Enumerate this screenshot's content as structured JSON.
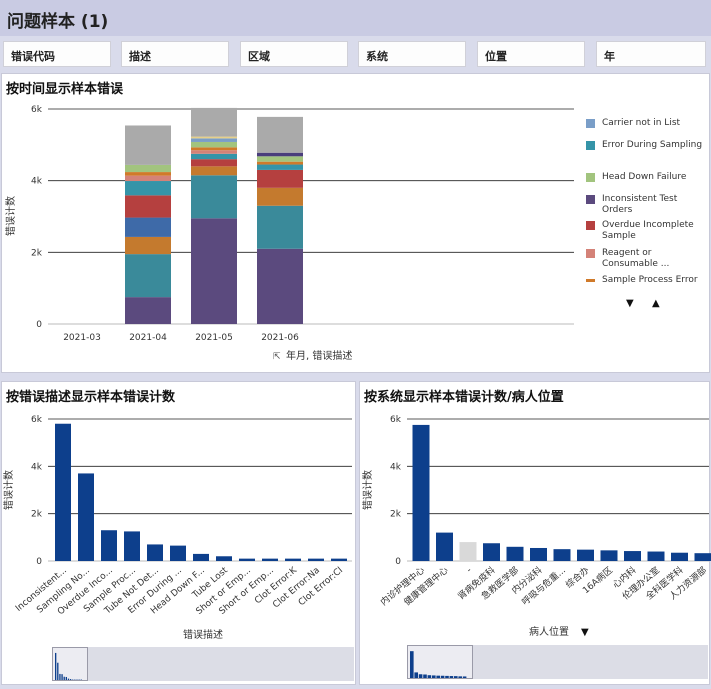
{
  "header": {
    "title": "问题样本 (1)"
  },
  "filters": [
    {
      "label": "错误代码"
    },
    {
      "label": "描述"
    },
    {
      "label": "区域"
    },
    {
      "label": "系统"
    },
    {
      "label": "位置"
    },
    {
      "label": "年"
    }
  ],
  "colors": {
    "accent": "#0d3f8c",
    "hover_bar": "#d9d9d9"
  },
  "chart_data": [
    {
      "type": "bar",
      "stacked": true,
      "title": "按时间显示样本错误",
      "xlabel": "年月, 错误描述",
      "ylabel": "错误计数",
      "ylim": [
        0,
        6000
      ],
      "yticks": [
        "0",
        "2k",
        "4k",
        "6k"
      ],
      "grid": true,
      "legend_position": "right",
      "categories": [
        "2021-03",
        "2021-04",
        "2021-05",
        "2021-06"
      ],
      "series": [
        {
          "name": "Inconsistent Test Orders",
          "color": "#5b4a7e",
          "values": [
            0,
            750,
            2950,
            2100
          ]
        },
        {
          "name": "",
          "color": "#3a8a9a",
          "values": [
            0,
            1200,
            1200,
            1200
          ]
        },
        {
          "name": "",
          "color": "#c47a2e",
          "values": [
            0,
            480,
            250,
            500
          ]
        },
        {
          "name": "",
          "color": "#3e6aa8",
          "values": [
            0,
            540,
            0,
            0
          ]
        },
        {
          "name": "Overdue Incomplete Sample",
          "color": "#b5403f",
          "values": [
            0,
            620,
            200,
            500
          ]
        },
        {
          "name": "Error During Sampling",
          "color": "#3594a8",
          "values": [
            0,
            400,
            150,
            150
          ]
        },
        {
          "name": "Reagent or Consumable ...",
          "color": "#d48278",
          "values": [
            0,
            150,
            100,
            0
          ]
        },
        {
          "name": "Sample Process Error",
          "color": "#d07a2a",
          "values": [
            0,
            100,
            80,
            80
          ]
        },
        {
          "name": "Head Down Failure",
          "color": "#a2c47e",
          "values": [
            0,
            200,
            150,
            150
          ]
        },
        {
          "name": "",
          "color": "#4a3e7c",
          "values": [
            0,
            0,
            0,
            100
          ]
        },
        {
          "name": "Carrier not in List",
          "color": "#7a9ec8",
          "values": [
            0,
            0,
            100,
            0
          ]
        },
        {
          "name": "",
          "color": "#e6d08a",
          "values": [
            0,
            0,
            50,
            0
          ]
        },
        {
          "name": "",
          "color": "#aaaaaa",
          "values": [
            0,
            1100,
            800,
            1000
          ]
        }
      ],
      "legend": [
        {
          "name": "Carrier not in List",
          "color": "#7a9ec8"
        },
        {
          "name": "Error During Sampling",
          "color": "#3594a8"
        },
        {
          "name": "Head Down Failure",
          "color": "#a2c47e"
        },
        {
          "name": "Inconsistent Test Orders",
          "color": "#5b4a7e"
        },
        {
          "name": "Overdue Incomplete Sample",
          "color": "#b5403f"
        },
        {
          "name": "Reagent or Consumable ...",
          "color": "#d48278"
        },
        {
          "name": "Sample Process Error",
          "color": "#d07a2a"
        }
      ]
    },
    {
      "type": "bar",
      "title": "按错误描述显示样本错误计数",
      "xlabel": "错误描述",
      "ylabel": "错误计数",
      "ylim": [
        0,
        6000
      ],
      "yticks": [
        "0",
        "2k",
        "4k",
        "6k"
      ],
      "grid": true,
      "categories": [
        "Inconsistent...",
        "Sampling No...",
        "Overdue Inco...",
        "Sample Proc...",
        "Tube Not Det...",
        "Error During ...",
        "Head Down F...",
        "Tube Lost",
        "Short or Emp...",
        "Short or Emp...",
        "Clot Error:K",
        "Clot Error:Na",
        "Clot Error:Cl"
      ],
      "values": [
        5800,
        3700,
        1300,
        1250,
        700,
        650,
        300,
        200,
        100,
        100,
        100,
        100,
        100
      ],
      "color": "#0d3f8c"
    },
    {
      "type": "bar",
      "title": "按系统显示样本错误计数/病人位置",
      "xlabel": "病人位置",
      "ylabel": "错误计数",
      "ylim": [
        0,
        6000
      ],
      "yticks": [
        "0",
        "2k",
        "4k",
        "6k"
      ],
      "grid": true,
      "categories": [
        "内诊护理中心",
        "健康管理中心",
        "-",
        "肾病免疫科",
        "急救医学部",
        "内分泌科",
        "呼吸与危重...",
        "综合办",
        "16A病区",
        "心内科",
        "伦理办公室",
        "全科医学科",
        "人力资源部"
      ],
      "values": [
        5750,
        1200,
        800,
        750,
        600,
        550,
        500,
        480,
        450,
        420,
        400,
        350,
        330
      ],
      "highlight_index": 2,
      "color": "#0d3f8c"
    }
  ]
}
